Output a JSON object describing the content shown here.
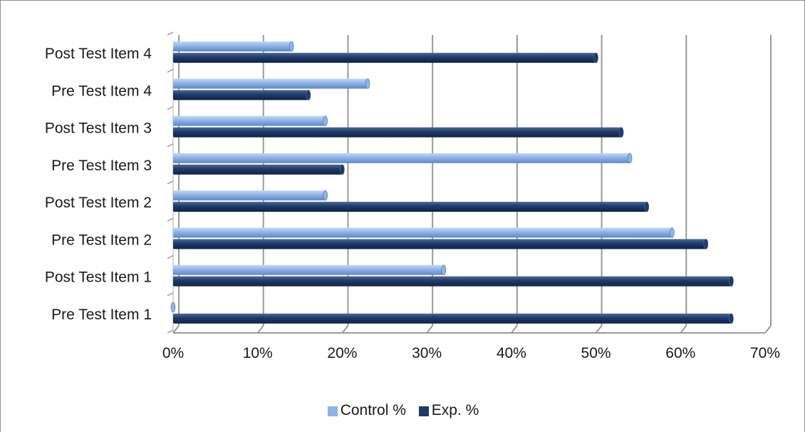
{
  "chart_data": {
    "type": "bar",
    "orientation": "horizontal",
    "categories": [
      "Pre Test Item 1",
      "Post Test Item 1",
      "Pre Test Item 2",
      "Post Test Item 2",
      "Pre Test Item 3",
      "Post Test Item 3",
      "Pre Test Item 4",
      "Post Test Item 4"
    ],
    "series": [
      {
        "name": "Control %",
        "color": "#8db3e8",
        "values": [
          0,
          32,
          59,
          18,
          54,
          18,
          23,
          14
        ]
      },
      {
        "name": "Exp. %",
        "color": "#1f3a68",
        "values": [
          66,
          66,
          63,
          56,
          20,
          53,
          16,
          50
        ]
      }
    ],
    "xlim": [
      0,
      70
    ],
    "x_ticks": [
      "0%",
      "10%",
      "20%",
      "30%",
      "40%",
      "50%",
      "60%",
      "70%"
    ],
    "grid": true,
    "legend_position": "bottom"
  }
}
